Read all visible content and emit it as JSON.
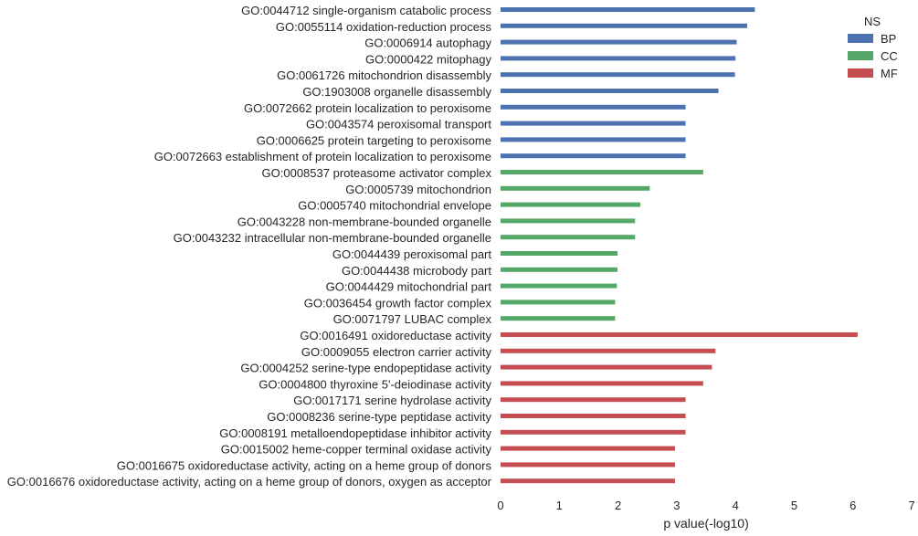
{
  "chart_data": {
    "type": "bar",
    "orientation": "horizontal",
    "xlabel": "p value(-log10)",
    "xlim": [
      0,
      7
    ],
    "xticks": [
      "0",
      "1",
      "2",
      "3",
      "4",
      "5",
      "6",
      "7"
    ],
    "grid": false,
    "legend": {
      "title": "NS",
      "placement": "top-right",
      "entries": [
        {
          "name": "BP",
          "color": "#4c72b0"
        },
        {
          "name": "CC",
          "color": "#55a868"
        },
        {
          "name": "MF",
          "color": "#c44e52"
        }
      ]
    },
    "categories": [
      "GO:0044712 single-organism catabolic process",
      "GO:0055114 oxidation-reduction process",
      "GO:0006914 autophagy",
      "GO:0000422 mitophagy",
      "GO:0061726 mitochondrion disassembly",
      "GO:1903008 organelle disassembly",
      "GO:0072662 protein localization to peroxisome",
      "GO:0043574 peroxisomal transport",
      "GO:0006625 protein targeting to peroxisome",
      "GO:0072663 establishment of protein localization to peroxisome",
      "GO:0008537 proteasome activator complex",
      "GO:0005739 mitochondrion",
      "GO:0005740 mitochondrial envelope",
      "GO:0043228 non-membrane-bounded organelle",
      "GO:0043232 intracellular non-membrane-bounded organelle",
      "GO:0044439 peroxisomal part",
      "GO:0044438 microbody part",
      "GO:0044429 mitochondrial part",
      "GO:0036454 growth factor complex",
      "GO:0071797 LUBAC complex",
      "GO:0016491 oxidoreductase activity",
      "GO:0009055 electron carrier activity",
      "GO:0004252 serine-type endopeptidase activity",
      "GO:0004800 thyroxine 5'-deiodinase activity",
      "GO:0017171 serine hydrolase activity",
      "GO:0008236 serine-type peptidase activity",
      "GO:0008191 metalloendopeptidase inhibitor activity",
      "GO:0015002 heme-copper terminal oxidase activity",
      "GO:0016675 oxidoreductase activity, acting on a heme group of donors",
      "GO:0016676 oxidoreductase activity, acting on a heme group of donors, oxygen as acceptor"
    ],
    "values": [
      4.33,
      4.2,
      4.02,
      4.0,
      3.99,
      3.71,
      3.15,
      3.15,
      3.15,
      3.15,
      3.45,
      2.54,
      2.38,
      2.29,
      2.29,
      1.99,
      1.99,
      1.98,
      1.95,
      1.95,
      6.08,
      3.66,
      3.6,
      3.45,
      3.15,
      3.15,
      3.15,
      2.97,
      2.97,
      2.97
    ],
    "groups": [
      "BP",
      "BP",
      "BP",
      "BP",
      "BP",
      "BP",
      "BP",
      "BP",
      "BP",
      "BP",
      "CC",
      "CC",
      "CC",
      "CC",
      "CC",
      "CC",
      "CC",
      "CC",
      "CC",
      "CC",
      "MF",
      "MF",
      "MF",
      "MF",
      "MF",
      "MF",
      "MF",
      "MF",
      "MF",
      "MF"
    ]
  }
}
